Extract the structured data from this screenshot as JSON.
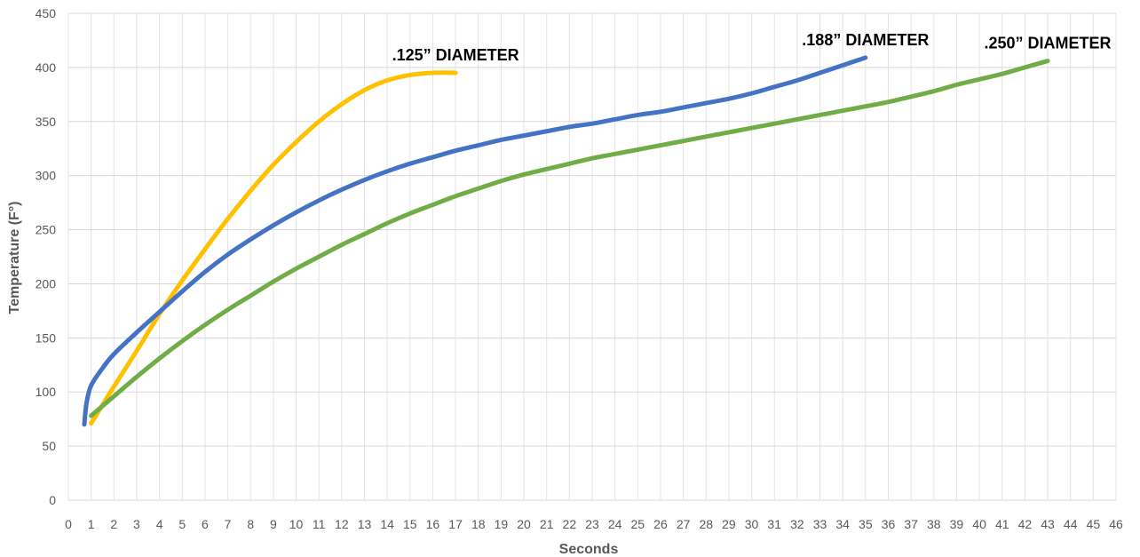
{
  "chart_data": {
    "type": "line",
    "title": "",
    "xlabel": "Seconds",
    "ylabel": "Temperature (F°)",
    "xlim": [
      0,
      46
    ],
    "ylim": [
      0,
      450
    ],
    "x_ticks": [
      0,
      1,
      2,
      3,
      4,
      5,
      6,
      7,
      8,
      9,
      10,
      11,
      12,
      13,
      14,
      15,
      16,
      17,
      18,
      19,
      20,
      21,
      22,
      23,
      24,
      25,
      26,
      27,
      28,
      29,
      30,
      31,
      32,
      33,
      34,
      35,
      36,
      37,
      38,
      39,
      40,
      41,
      42,
      43,
      44,
      45,
      46
    ],
    "y_ticks": [
      0,
      50,
      100,
      150,
      200,
      250,
      300,
      350,
      400,
      450
    ],
    "grid": true,
    "legend": "none",
    "series": [
      {
        "name": ".125” DIAMETER",
        "color": "#FFC000",
        "points": [
          [
            1,
            71
          ],
          [
            2,
            105
          ],
          [
            3,
            138
          ],
          [
            4,
            172
          ],
          [
            5,
            203
          ],
          [
            6,
            232
          ],
          [
            7,
            260
          ],
          [
            8,
            286
          ],
          [
            9,
            310
          ],
          [
            10,
            331
          ],
          [
            11,
            350
          ],
          [
            12,
            366
          ],
          [
            13,
            379
          ],
          [
            14,
            388
          ],
          [
            15,
            393
          ],
          [
            16,
            395
          ],
          [
            17,
            395
          ]
        ]
      },
      {
        "name": ".188” DIAMETER",
        "color": "#4472C4",
        "points": [
          [
            0.7,
            70
          ],
          [
            0.8,
            90
          ],
          [
            1,
            106
          ],
          [
            1.5,
            122
          ],
          [
            2,
            135
          ],
          [
            3,
            155
          ],
          [
            4,
            174
          ],
          [
            5,
            193
          ],
          [
            6,
            211
          ],
          [
            7,
            227
          ],
          [
            8,
            241
          ],
          [
            9,
            254
          ],
          [
            10,
            266
          ],
          [
            11,
            277
          ],
          [
            12,
            287
          ],
          [
            13,
            296
          ],
          [
            14,
            304
          ],
          [
            15,
            311
          ],
          [
            16,
            317
          ],
          [
            17,
            323
          ],
          [
            18,
            328
          ],
          [
            19,
            333
          ],
          [
            20,
            337
          ],
          [
            21,
            341
          ],
          [
            22,
            345
          ],
          [
            23,
            348
          ],
          [
            24,
            352
          ],
          [
            25,
            356
          ],
          [
            26,
            359
          ],
          [
            27,
            363
          ],
          [
            28,
            367
          ],
          [
            29,
            371
          ],
          [
            30,
            376
          ],
          [
            31,
            382
          ],
          [
            32,
            388
          ],
          [
            33,
            395
          ],
          [
            34,
            402
          ],
          [
            35,
            409
          ]
        ]
      },
      {
        "name": ".250” DIAMETER",
        "color": "#70AD47",
        "points": [
          [
            1,
            78
          ],
          [
            2,
            96
          ],
          [
            3,
            114
          ],
          [
            4,
            131
          ],
          [
            5,
            147
          ],
          [
            6,
            162
          ],
          [
            7,
            176
          ],
          [
            8,
            189
          ],
          [
            9,
            202
          ],
          [
            10,
            214
          ],
          [
            11,
            225
          ],
          [
            12,
            236
          ],
          [
            13,
            246
          ],
          [
            14,
            256
          ],
          [
            15,
            265
          ],
          [
            16,
            273
          ],
          [
            17,
            281
          ],
          [
            18,
            288
          ],
          [
            19,
            295
          ],
          [
            20,
            301
          ],
          [
            21,
            306
          ],
          [
            22,
            311
          ],
          [
            23,
            316
          ],
          [
            24,
            320
          ],
          [
            25,
            324
          ],
          [
            26,
            328
          ],
          [
            27,
            332
          ],
          [
            28,
            336
          ],
          [
            29,
            340
          ],
          [
            30,
            344
          ],
          [
            31,
            348
          ],
          [
            32,
            352
          ],
          [
            33,
            356
          ],
          [
            34,
            360
          ],
          [
            35,
            364
          ],
          [
            36,
            368
          ],
          [
            37,
            373
          ],
          [
            38,
            378
          ],
          [
            39,
            384
          ],
          [
            40,
            389
          ],
          [
            41,
            394
          ],
          [
            42,
            400
          ],
          [
            43,
            406
          ]
        ]
      }
    ]
  }
}
